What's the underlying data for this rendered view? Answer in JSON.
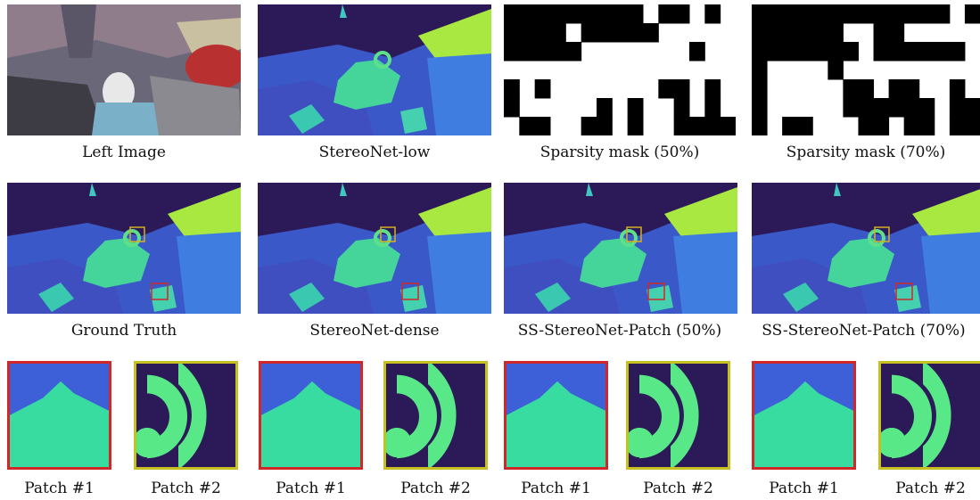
{
  "row1": {
    "captions": [
      "Left Image",
      "StereoNet-low",
      "Sparsity mask (50%)",
      "Sparsity mask (70%)"
    ]
  },
  "row2": {
    "captions": [
      "Ground Truth",
      "StereoNet-dense",
      "SS-StereoNet-Patch (50%)",
      "SS-StereoNet-Patch (70%)"
    ]
  },
  "row3": {
    "captions": [
      "Patch #1",
      "Patch #2",
      "Patch #1",
      "Patch #2",
      "Patch #1",
      "Patch #2",
      "Patch #1",
      "Patch #2"
    ]
  }
}
